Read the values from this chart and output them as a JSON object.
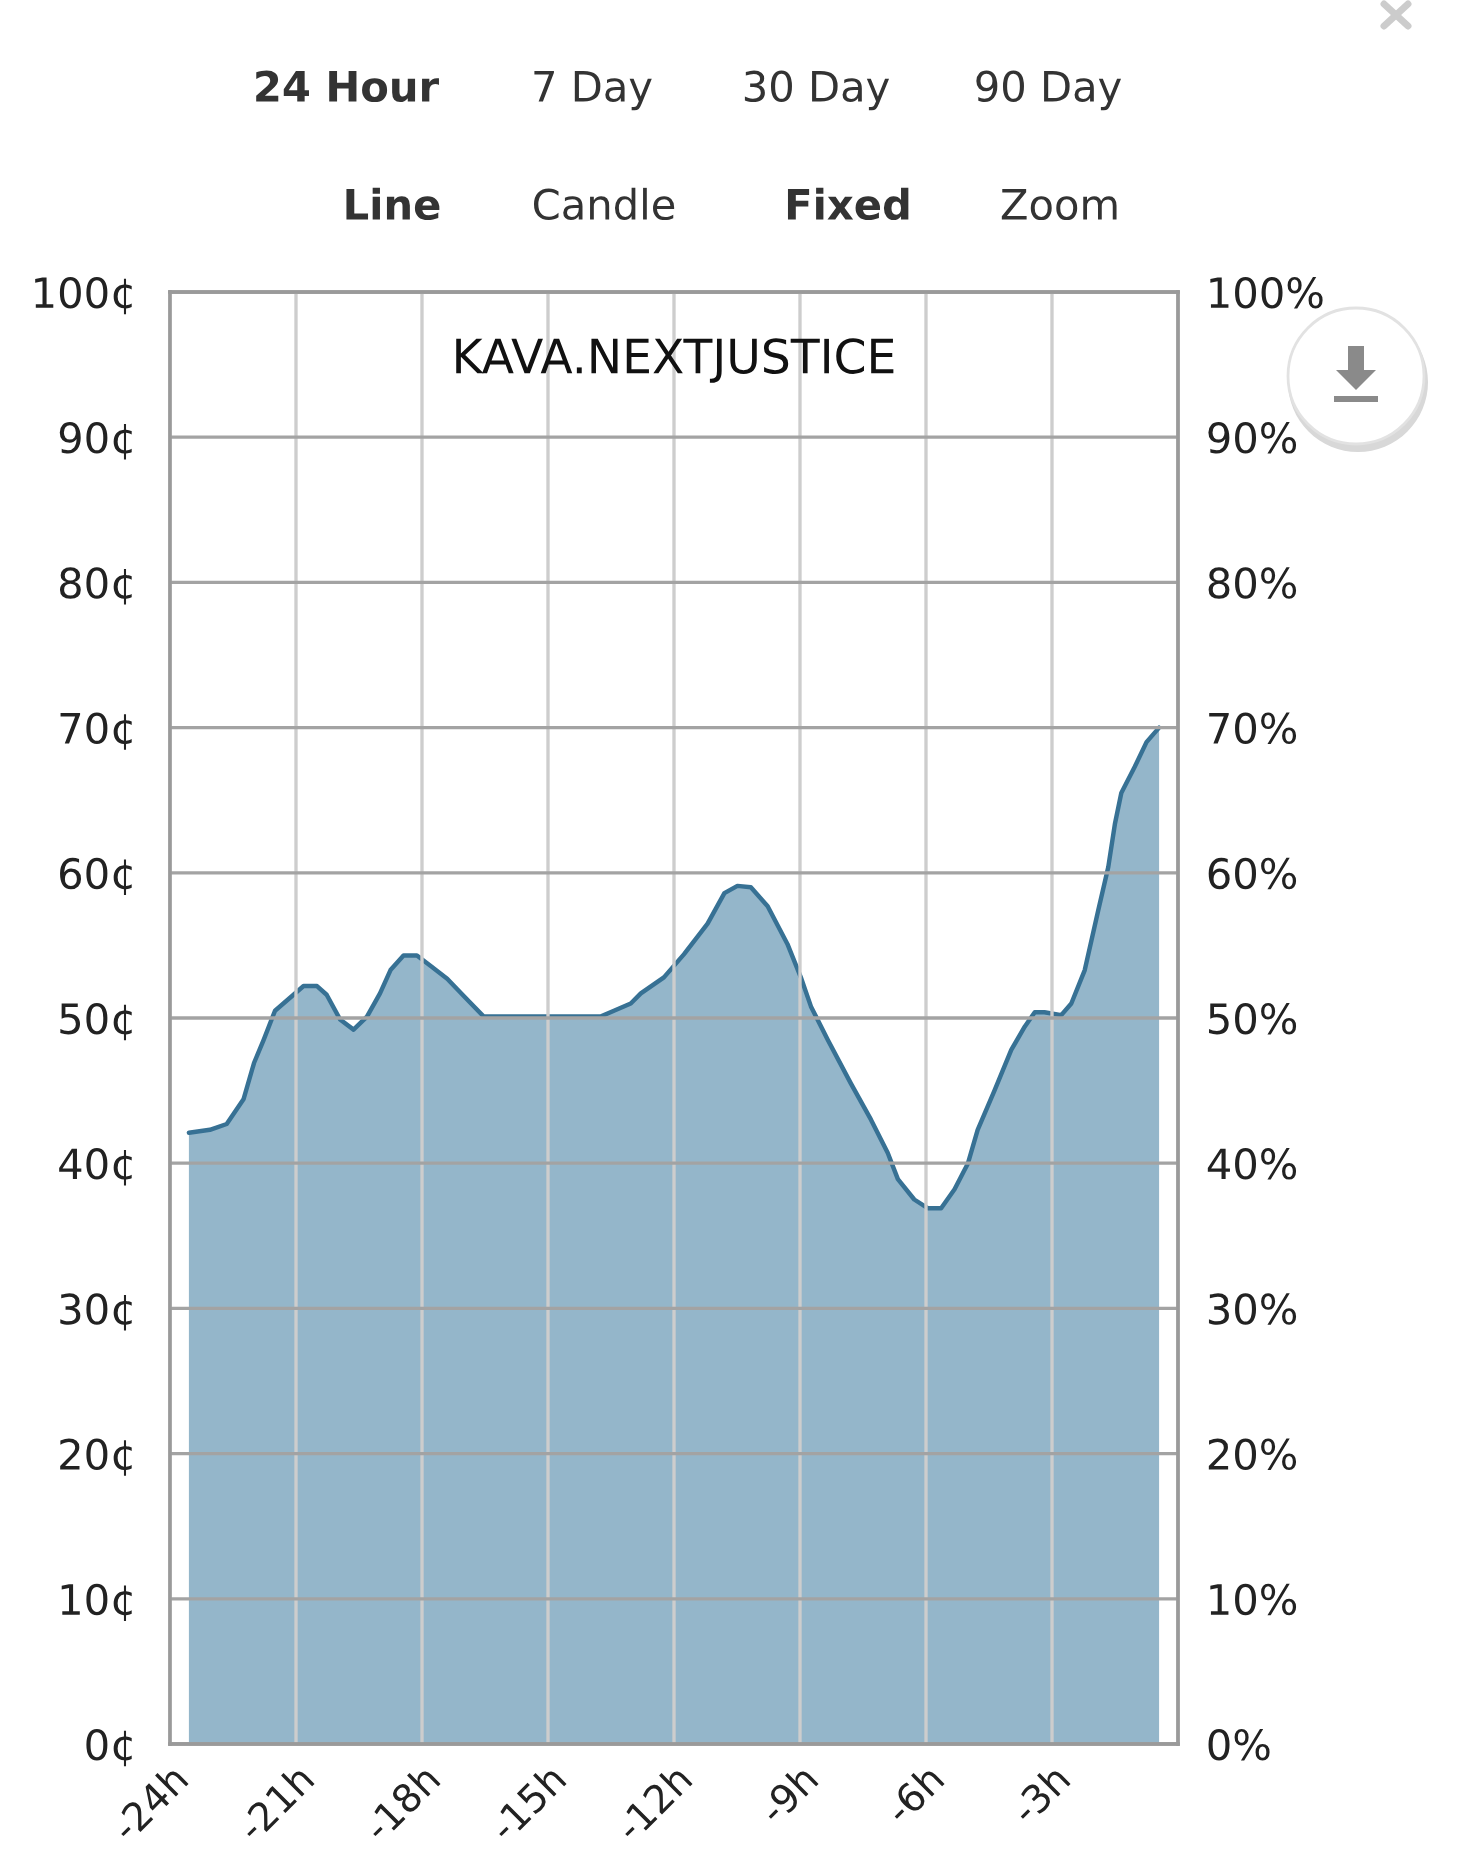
{
  "chart_data": {
    "type": "area",
    "title": "KAVA.NEXTJUSTICE",
    "annotations": [
      "24 Hour",
      "7 Day",
      "30 Day",
      "90 Day",
      "Line",
      "Candle",
      "Fixed",
      "Zoom"
    ],
    "x": [
      -23.55,
      -23.05,
      -22.65,
      -22.25,
      -22.0,
      -21.77,
      -21.5,
      -21.06,
      -20.82,
      -20.5,
      -20.27,
      -19.95,
      -19.63,
      -19.31,
      -19.0,
      -18.75,
      -18.44,
      -18.12,
      -17.8,
      -17.4,
      -17.0,
      -16.53,
      -15.0,
      -13.75,
      -13.43,
      -13.03,
      -12.79,
      -12.24,
      -11.76,
      -11.2,
      -10.8,
      -10.49,
      -10.17,
      -9.77,
      -9.3,
      -8.98,
      -8.74,
      -8.34,
      -7.79,
      -7.31,
      -6.91,
      -6.67,
      -6.28,
      -5.96,
      -5.64,
      -5.32,
      -5.0,
      -4.77,
      -4.37,
      -3.97,
      -3.65,
      -3.41,
      -3.18,
      -2.78,
      -2.54,
      -2.22,
      -1.9,
      -1.66,
      -1.5,
      -1.35,
      -1.03,
      -0.75,
      -0.45
    ],
    "series": [
      {
        "color": "#94b6ca",
        "values": [
          42.1,
          42.3,
          42.7,
          44.4,
          46.9,
          48.5,
          50.5,
          51.6,
          52.2,
          52.2,
          51.6,
          49.9,
          49.2,
          50.1,
          51.7,
          53.3,
          54.3,
          54.3,
          53.6,
          52.7,
          51.5,
          50.1,
          50.1,
          50.1,
          50.5,
          51.0,
          51.7,
          52.8,
          54.4,
          56.5,
          58.6,
          59.1,
          59.0,
          57.7,
          55.1,
          52.8,
          50.8,
          48.5,
          45.5,
          43.0,
          40.7,
          38.9,
          37.5,
          36.9,
          36.9,
          38.2,
          40.0,
          42.3,
          45.0,
          47.8,
          49.4,
          50.4,
          50.4,
          50.2,
          51.0,
          53.3,
          57.4,
          60.4,
          63.4,
          65.5,
          67.3,
          69.0,
          70.0
        ]
      }
    ],
    "xlim": [
      -24,
      0
    ],
    "xticks": [
      {
        "value": -24,
        "label": "-24h"
      },
      {
        "value": -21,
        "label": "-21h"
      },
      {
        "value": -18,
        "label": "-18h"
      },
      {
        "value": -15,
        "label": "-15h"
      },
      {
        "value": -12,
        "label": "-12h"
      },
      {
        "value": -9,
        "label": "-9h"
      },
      {
        "value": -6,
        "label": "-6h"
      },
      {
        "value": -3,
        "label": "-3h"
      }
    ],
    "ylim": [
      0,
      100
    ],
    "yticks": [
      {
        "value": 0,
        "label": "0¢"
      },
      {
        "value": 10,
        "label": "10¢"
      },
      {
        "value": 20,
        "label": "20¢"
      },
      {
        "value": 30,
        "label": "30¢"
      },
      {
        "value": 40,
        "label": "40¢"
      },
      {
        "value": 50,
        "label": "50¢"
      },
      {
        "value": 60,
        "label": "60¢"
      },
      {
        "value": 70,
        "label": "70¢"
      },
      {
        "value": 80,
        "label": "80¢"
      },
      {
        "value": 90,
        "label": "90¢"
      },
      {
        "value": 100,
        "label": "100¢"
      }
    ],
    "y2lim": [
      0,
      100
    ],
    "y2ticks": [
      {
        "value": 0,
        "label": "0%"
      },
      {
        "value": 10,
        "label": "10%"
      },
      {
        "value": 20,
        "label": "20%"
      },
      {
        "value": 30,
        "label": "30%"
      },
      {
        "value": 40,
        "label": "40%"
      },
      {
        "value": 50,
        "label": "50%"
      },
      {
        "value": 60,
        "label": "60%"
      },
      {
        "value": 70,
        "label": "70%"
      },
      {
        "value": 80,
        "label": "80%"
      },
      {
        "value": 90,
        "label": "90%"
      },
      {
        "value": 100,
        "label": "100%"
      }
    ],
    "grid": true
  }
}
